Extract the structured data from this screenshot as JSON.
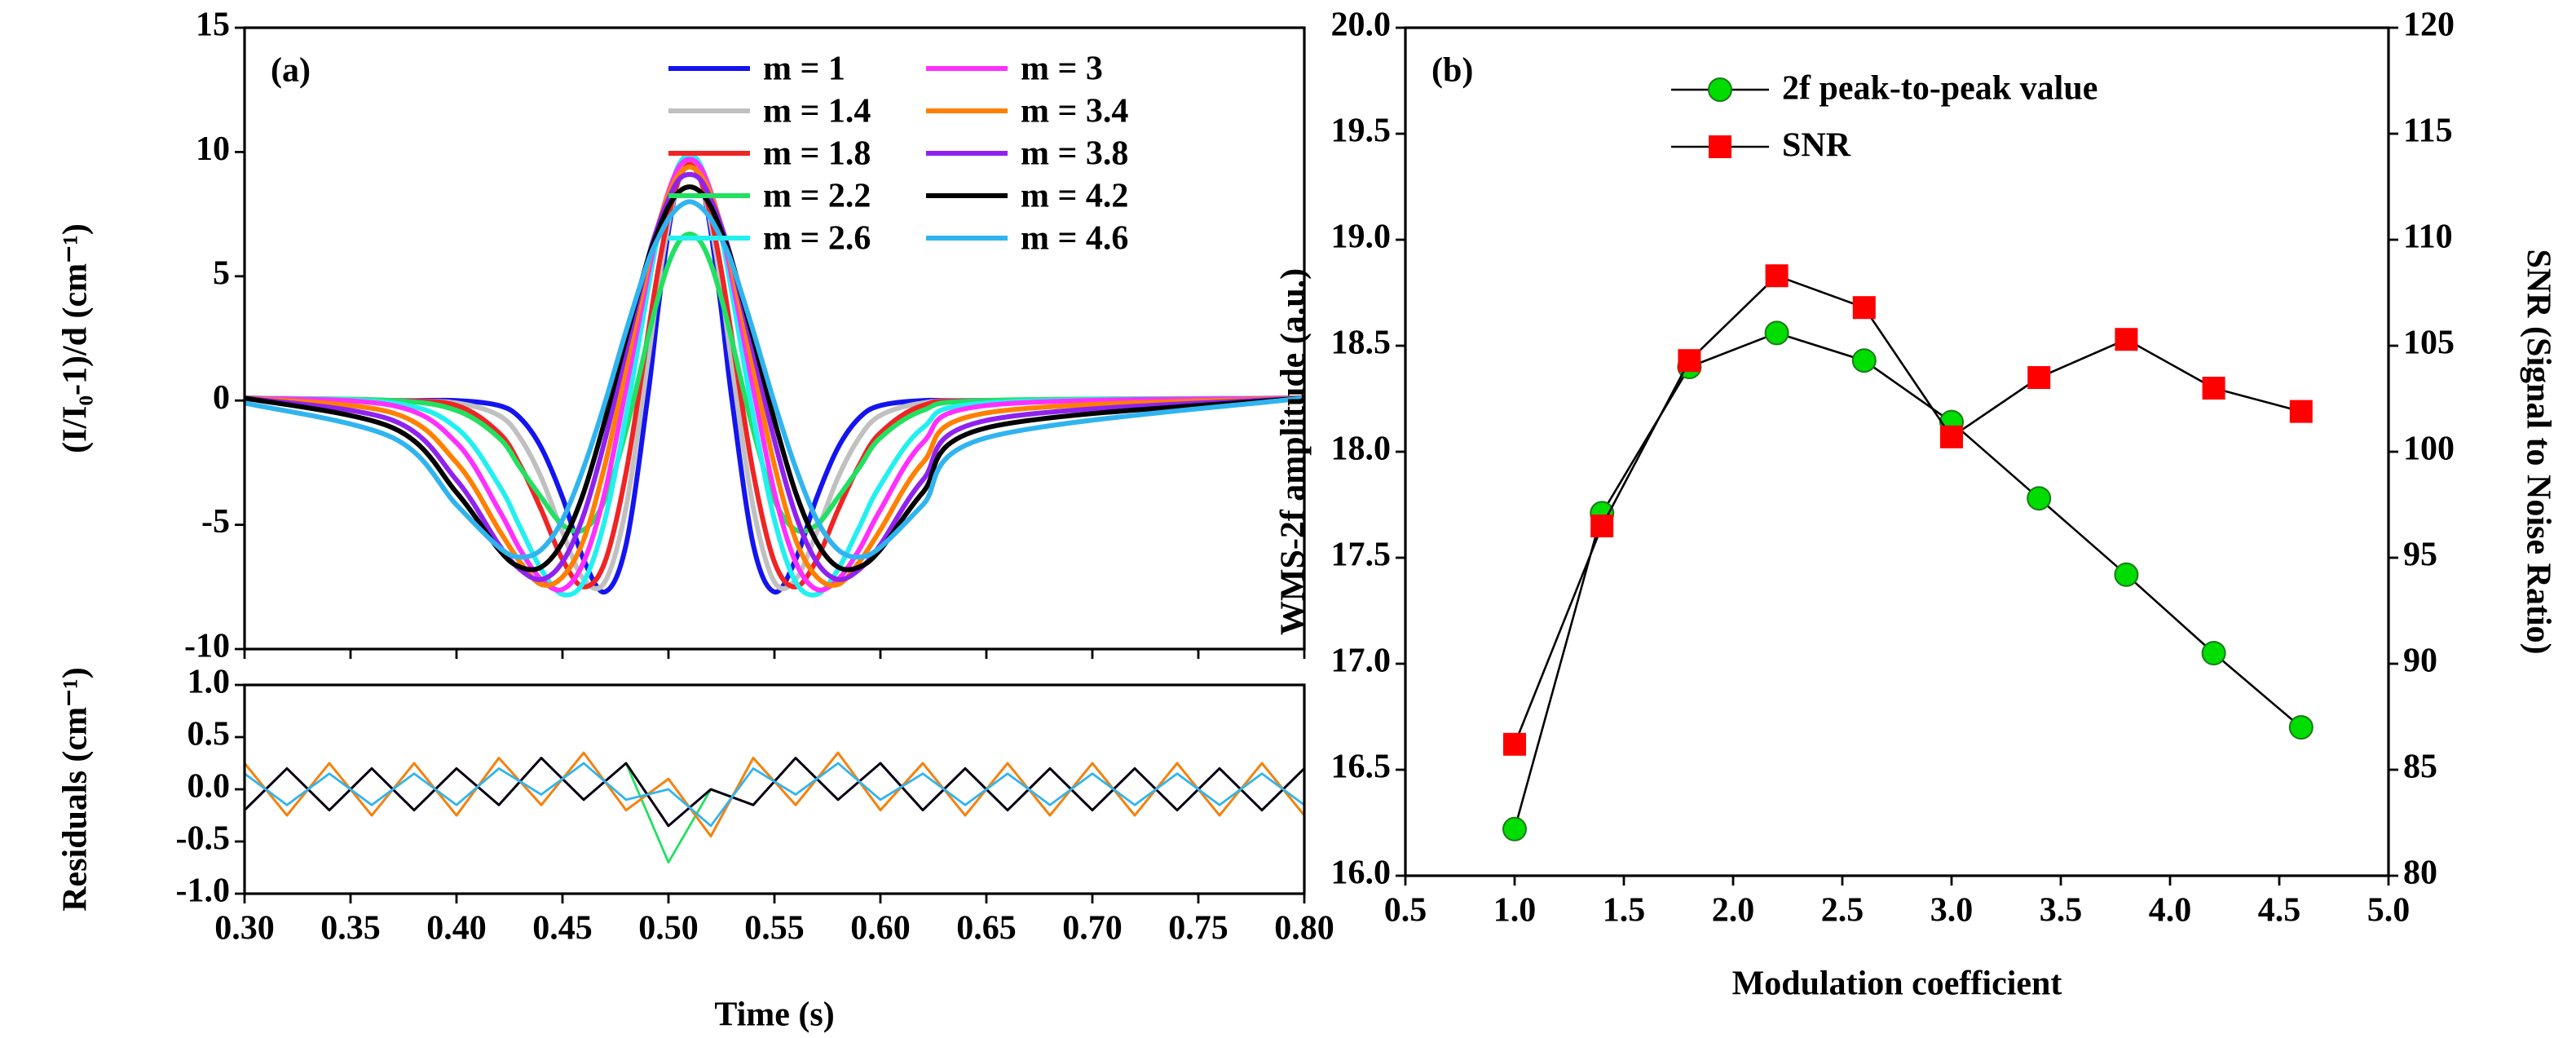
{
  "chart_data": [
    {
      "type": "line",
      "annotation": "(a)",
      "ylabel": "(I/I₀-1)/d (cm⁻¹)",
      "legend": "upper right",
      "x": [
        0.3,
        0.37,
        0.4,
        0.42,
        0.43,
        0.44,
        0.45,
        0.46,
        0.47,
        0.48,
        0.49,
        0.495,
        0.5,
        0.505,
        0.51,
        0.515,
        0.52,
        0.525,
        0.53,
        0.54,
        0.55,
        0.56,
        0.57,
        0.58,
        0.59,
        0.6,
        0.62,
        0.65,
        0.8
      ],
      "xlim": [
        0.3,
        0.8
      ],
      "ylim": [
        -10,
        15
      ],
      "yticks": [
        -10,
        -5,
        0,
        5,
        10,
        15
      ],
      "series": [
        {
          "name": "m = 1",
          "color": "#1414f0",
          "values": [
            0.1,
            0.0,
            0.0,
            -0.2,
            -0.7,
            -1.9,
            -3.9,
            -6.4,
            -7.7,
            -5.8,
            0.0,
            3.6,
            6.8,
            9.0,
            9.8,
            9.0,
            6.8,
            3.6,
            0.0,
            -5.8,
            -7.7,
            -6.4,
            -3.9,
            -1.9,
            -0.7,
            -0.2,
            0.0,
            0.0,
            0.1
          ]
        },
        {
          "name": "m = 1.4",
          "color": "#c0c0c0",
          "values": [
            0.1,
            0.0,
            -0.1,
            -0.6,
            -1.5,
            -3.1,
            -5.3,
            -7.2,
            -7.3,
            -4.3,
            1.4,
            4.5,
            7.1,
            8.9,
            9.6,
            8.9,
            7.1,
            4.5,
            1.4,
            -4.3,
            -7.3,
            -7.2,
            -5.3,
            -3.1,
            -1.5,
            -0.6,
            -0.1,
            0.0,
            0.1
          ]
        },
        {
          "name": "m = 1.8",
          "color": "#f02424",
          "values": [
            0.1,
            0.0,
            -0.2,
            -1.3,
            -2.6,
            -4.4,
            -6.4,
            -7.5,
            -6.5,
            -2.9,
            2.5,
            5.2,
            7.4,
            8.9,
            9.5,
            8.9,
            7.4,
            5.2,
            2.5,
            -2.9,
            -6.5,
            -7.5,
            -6.4,
            -4.4,
            -2.6,
            -1.3,
            -0.2,
            0.0,
            0.1
          ]
        },
        {
          "name": "m = 2.2",
          "color": "#22e060",
          "values": [
            0.1,
            0.0,
            -0.4,
            -1.5,
            -2.7,
            -3.9,
            -5.0,
            -5.2,
            -4.0,
            -1.2,
            2.4,
            4.1,
            5.5,
            6.4,
            6.7,
            6.4,
            5.5,
            4.1,
            2.4,
            -1.2,
            -4.0,
            -5.2,
            -5.0,
            -3.9,
            -2.7,
            -1.5,
            -0.4,
            0.0,
            0.1
          ]
        },
        {
          "name": "m = 2.6",
          "color": "#22f0f0",
          "values": [
            0.1,
            -0.1,
            -1.1,
            -3.4,
            -5.1,
            -6.8,
            -7.8,
            -7.3,
            -4.8,
            -0.6,
            4.3,
            6.6,
            8.3,
            9.5,
            9.9,
            9.5,
            8.3,
            6.6,
            4.3,
            -0.6,
            -4.8,
            -7.3,
            -7.8,
            -6.8,
            -5.1,
            -3.4,
            -1.1,
            -0.1,
            0.1
          ]
        },
        {
          "name": "m = 3",
          "color": "#ff30ff",
          "values": [
            0.1,
            -0.2,
            -1.7,
            -4.4,
            -6.0,
            -7.2,
            -7.6,
            -6.5,
            -3.7,
            0.5,
            4.9,
            6.9,
            8.4,
            9.4,
            9.7,
            9.4,
            8.4,
            6.9,
            4.9,
            0.5,
            -3.7,
            -6.5,
            -7.6,
            -7.2,
            -6.0,
            -4.4,
            -1.7,
            -0.2,
            0.1
          ]
        },
        {
          "name": "m = 3.4",
          "color": "#ff8000",
          "values": [
            0.1,
            -0.5,
            -2.5,
            -5.2,
            -6.5,
            -7.4,
            -7.1,
            -5.6,
            -2.6,
            1.3,
            5.3,
            7.0,
            8.3,
            9.1,
            9.4,
            9.1,
            8.3,
            7.0,
            5.3,
            1.3,
            -2.6,
            -5.6,
            -7.1,
            -7.4,
            -6.5,
            -5.2,
            -2.5,
            -0.5,
            0.1
          ]
        },
        {
          "name": "m = 3.8",
          "color": "#9022f0",
          "values": [
            0.1,
            -0.8,
            -3.2,
            -5.8,
            -6.8,
            -7.2,
            -6.5,
            -4.6,
            -1.6,
            2.0,
            5.6,
            7.0,
            8.1,
            8.9,
            9.1,
            8.9,
            8.1,
            7.0,
            5.6,
            2.0,
            -1.6,
            -4.6,
            -6.5,
            -7.2,
            -6.8,
            -5.8,
            -3.2,
            -0.8,
            0.1
          ]
        },
        {
          "name": "m = 4.2",
          "color": "#000000",
          "values": [
            0.1,
            -1.1,
            -3.7,
            -6.0,
            -6.7,
            -6.7,
            -5.7,
            -3.7,
            -0.8,
            2.5,
            5.6,
            6.8,
            7.8,
            8.4,
            8.6,
            8.4,
            7.8,
            6.8,
            5.6,
            2.5,
            -0.8,
            -3.7,
            -5.7,
            -6.7,
            -6.7,
            -6.0,
            -3.7,
            -1.1,
            0.1
          ]
        },
        {
          "name": "m = 4.6",
          "color": "#30b4f0",
          "values": [
            -0.1,
            -1.5,
            -4.2,
            -5.9,
            -6.3,
            -6.0,
            -4.8,
            -2.7,
            -0.1,
            2.8,
            5.5,
            6.5,
            7.3,
            7.8,
            8.0,
            7.8,
            7.3,
            6.5,
            5.5,
            2.8,
            -0.1,
            -2.7,
            -4.8,
            -6.0,
            -6.3,
            -5.9,
            -4.2,
            -1.5,
            0.1
          ]
        }
      ]
    },
    {
      "type": "line",
      "ylabel": "Residuals (cm⁻¹)",
      "xlabel": "Time (s)",
      "x": [
        0.3,
        0.32,
        0.34,
        0.36,
        0.38,
        0.4,
        0.42,
        0.44,
        0.46,
        0.48,
        0.5,
        0.52,
        0.54,
        0.56,
        0.58,
        0.6,
        0.62,
        0.64,
        0.66,
        0.68,
        0.7,
        0.72,
        0.74,
        0.76,
        0.78,
        0.8
      ],
      "xlim": [
        0.3,
        0.8
      ],
      "xticks": [
        {
          "value": 0.3,
          "label": "0.30"
        },
        0.35,
        {
          "value": 0.4,
          "label": "0.40"
        },
        0.45,
        {
          "value": 0.5,
          "label": "0.50"
        },
        0.55,
        {
          "value": 0.6,
          "label": "0.60"
        },
        0.65,
        {
          "value": 0.7,
          "label": "0.70"
        },
        0.75,
        {
          "value": 0.8,
          "label": "0.80"
        }
      ],
      "ylim": [
        -1,
        1
      ],
      "yticks": [
        {
          "value": -1,
          "label": "-1.0"
        },
        -0.5,
        {
          "value": 0,
          "label": "0.0"
        },
        0.5,
        {
          "value": 1,
          "label": "1.0"
        }
      ],
      "series": [
        {
          "color": "#1414f0",
          "values": [
            -0.2,
            0.2,
            -0.2,
            0.2,
            -0.2,
            0.2,
            -0.15,
            0.3,
            -0.1,
            0.25,
            -0.35,
            0.0,
            -0.15,
            0.3,
            -0.1,
            0.25,
            -0.2,
            0.2,
            -0.2,
            0.2,
            -0.2,
            0.2,
            -0.2,
            0.2,
            -0.2,
            0.2
          ]
        },
        {
          "color": "#c0c0c0",
          "values": [
            0.25,
            -0.25,
            0.25,
            -0.25,
            0.25,
            -0.25,
            0.3,
            -0.15,
            0.35,
            -0.2,
            0.1,
            -0.45,
            0.3,
            -0.15,
            0.35,
            -0.2,
            0.25,
            -0.25,
            0.25,
            -0.25,
            0.25,
            -0.25,
            0.25,
            -0.25,
            0.25,
            -0.25
          ]
        },
        {
          "color": "#f02424",
          "values": [
            0.25,
            -0.25,
            0.25,
            -0.25,
            0.25,
            -0.25,
            0.3,
            -0.15,
            0.35,
            -0.2,
            0.1,
            -0.45,
            0.3,
            -0.15,
            0.35,
            -0.2,
            0.25,
            -0.25,
            0.25,
            -0.25,
            0.25,
            -0.25,
            0.25,
            -0.25,
            0.25,
            -0.25
          ]
        },
        {
          "color": "#22e060",
          "values": [
            -0.2,
            0.2,
            -0.2,
            0.2,
            -0.2,
            0.2,
            -0.15,
            0.3,
            -0.1,
            0.25,
            -0.7,
            0.0,
            -0.15,
            0.3,
            -0.1,
            0.25,
            -0.2,
            0.2,
            -0.2,
            0.2,
            -0.2,
            0.2,
            -0.2,
            0.2,
            -0.2,
            0.2
          ]
        },
        {
          "color": "#22f0f0",
          "values": [
            0.25,
            -0.25,
            0.25,
            -0.25,
            0.25,
            -0.25,
            0.3,
            -0.15,
            0.35,
            -0.2,
            0.1,
            -0.45,
            0.3,
            -0.15,
            0.35,
            -0.2,
            0.25,
            -0.25,
            0.25,
            -0.25,
            0.25,
            -0.25,
            0.25,
            -0.25,
            0.25,
            -0.25
          ]
        },
        {
          "color": "#ff30ff",
          "values": [
            -0.2,
            0.2,
            -0.2,
            0.2,
            -0.2,
            0.2,
            -0.15,
            0.3,
            -0.1,
            0.25,
            -0.35,
            0.0,
            -0.15,
            0.3,
            -0.1,
            0.25,
            -0.2,
            0.2,
            -0.2,
            0.2,
            -0.2,
            0.2,
            -0.2,
            0.2,
            -0.2,
            0.2
          ]
        },
        {
          "color": "#ff8000",
          "values": [
            0.25,
            -0.25,
            0.25,
            -0.25,
            0.25,
            -0.25,
            0.3,
            -0.15,
            0.35,
            -0.2,
            0.1,
            -0.45,
            0.3,
            -0.15,
            0.35,
            -0.2,
            0.25,
            -0.25,
            0.25,
            -0.25,
            0.25,
            -0.25,
            0.25,
            -0.25,
            0.25,
            -0.25
          ]
        },
        {
          "color": "#9022f0",
          "values": [
            -0.2,
            0.2,
            -0.2,
            0.2,
            -0.2,
            0.2,
            -0.15,
            0.3,
            -0.1,
            0.25,
            -0.35,
            0.0,
            -0.15,
            0.3,
            -0.1,
            0.25,
            -0.2,
            0.2,
            -0.2,
            0.2,
            -0.2,
            0.2,
            -0.2,
            0.2,
            -0.2,
            0.2
          ]
        },
        {
          "color": "#000000",
          "values": [
            -0.2,
            0.2,
            -0.2,
            0.2,
            -0.2,
            0.2,
            -0.15,
            0.3,
            -0.1,
            0.25,
            -0.35,
            0.0,
            -0.15,
            0.3,
            -0.1,
            0.25,
            -0.2,
            0.2,
            -0.2,
            0.2,
            -0.2,
            0.2,
            -0.2,
            0.2,
            -0.2,
            0.2
          ]
        },
        {
          "color": "#30b4f0",
          "values": [
            0.15,
            -0.15,
            0.15,
            -0.15,
            0.15,
            -0.15,
            0.2,
            -0.05,
            0.25,
            -0.1,
            0.0,
            -0.35,
            0.2,
            -0.05,
            0.25,
            -0.1,
            0.15,
            -0.15,
            0.15,
            -0.15,
            0.15,
            -0.15,
            0.15,
            -0.15,
            0.15,
            -0.15
          ]
        }
      ]
    },
    {
      "type": "line",
      "annotation": "(b)",
      "xlabel": "Modulation coefficient",
      "ylabel": "WMS-2f amplitude (a.u.)",
      "y2label": "SNR (Signal to Noise Ratio)",
      "legend": "upper left",
      "x": [
        1,
        1.4,
        1.8,
        2.2,
        2.6,
        3,
        3.4,
        3.8,
        4.2,
        4.6
      ],
      "xlim": [
        0.5,
        5
      ],
      "xticks": [
        0.5,
        {
          "value": 1,
          "label": "1.0"
        },
        1.5,
        {
          "value": 2,
          "label": "2.0"
        },
        2.5,
        {
          "value": 3,
          "label": "3.0"
        },
        3.5,
        {
          "value": 4,
          "label": "4.0"
        },
        4.5,
        {
          "value": 5,
          "label": "5.0"
        }
      ],
      "ylim": [
        16,
        20
      ],
      "yticks": [
        {
          "value": 16,
          "label": "16.0"
        },
        16.5,
        {
          "value": 17,
          "label": "17.0"
        },
        17.5,
        {
          "value": 18,
          "label": "18.0"
        },
        18.5,
        {
          "value": 19,
          "label": "19.0"
        },
        19.5,
        {
          "value": 20,
          "label": "20.0"
        }
      ],
      "y2lim": [
        80,
        120
      ],
      "y2ticks": [
        80,
        85,
        90,
        95,
        100,
        105,
        110,
        115,
        120
      ],
      "series": [
        {
          "name": "2f peak-to-peak value",
          "color": "#00dd00",
          "marker": "circle",
          "values": [
            16.22,
            17.71,
            18.4,
            18.56,
            18.43,
            18.14,
            17.78,
            17.42,
            17.05,
            16.7
          ]
        },
        {
          "name": "SNR",
          "color": "#ff0000",
          "marker": "square",
          "axis": "y2",
          "values": [
            86.2,
            96.5,
            104.3,
            108.3,
            106.8,
            100.7,
            103.5,
            105.3,
            103.0,
            101.9
          ]
        }
      ]
    }
  ]
}
